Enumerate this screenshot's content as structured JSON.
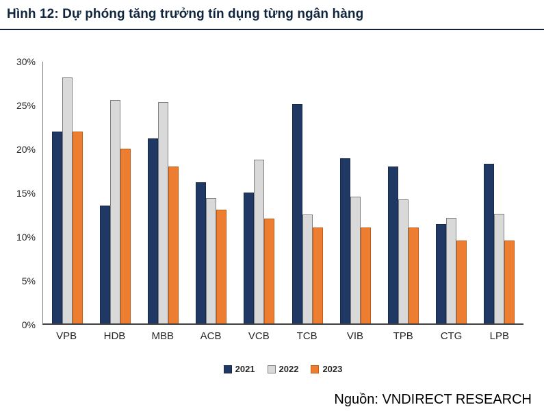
{
  "title": "Hình 12: Dự phóng tăng trưởng tín dụng từng ngân hàng",
  "source": "Nguồn: VNDIRECT RESEARCH",
  "chart_data": {
    "type": "bar",
    "title": "Hình 12: Dự phóng tăng trưởng tín dụng từng ngân hàng",
    "categories": [
      "VPB",
      "HDB",
      "MBB",
      "ACB",
      "VCB",
      "TCB",
      "VIB",
      "TPB",
      "CTG",
      "LPB"
    ],
    "series": [
      {
        "name": "2021",
        "color": "#1F3864",
        "border": "#17294A",
        "values": [
          22.0,
          13.5,
          21.2,
          16.2,
          15.0,
          25.1,
          18.9,
          18.0,
          11.4,
          18.3
        ]
      },
      {
        "name": "2022",
        "color": "#D9D9D9",
        "border": "#808080",
        "values": [
          28.2,
          25.6,
          25.4,
          14.4,
          18.8,
          12.5,
          14.5,
          14.2,
          12.1,
          12.6
        ]
      },
      {
        "name": "2023",
        "color": "#ED7D31",
        "border": "#C55A11",
        "values": [
          22.0,
          20.0,
          18.0,
          13.0,
          12.0,
          11.0,
          11.0,
          11.0,
          9.5,
          9.5
        ]
      }
    ],
    "xlabel": "",
    "ylabel": "",
    "ylim": [
      0,
      30
    ],
    "yticks": [
      "0%",
      "5%",
      "10%",
      "15%",
      "20%",
      "25%",
      "30%"
    ],
    "grid": false,
    "legend_position": "bottom"
  }
}
